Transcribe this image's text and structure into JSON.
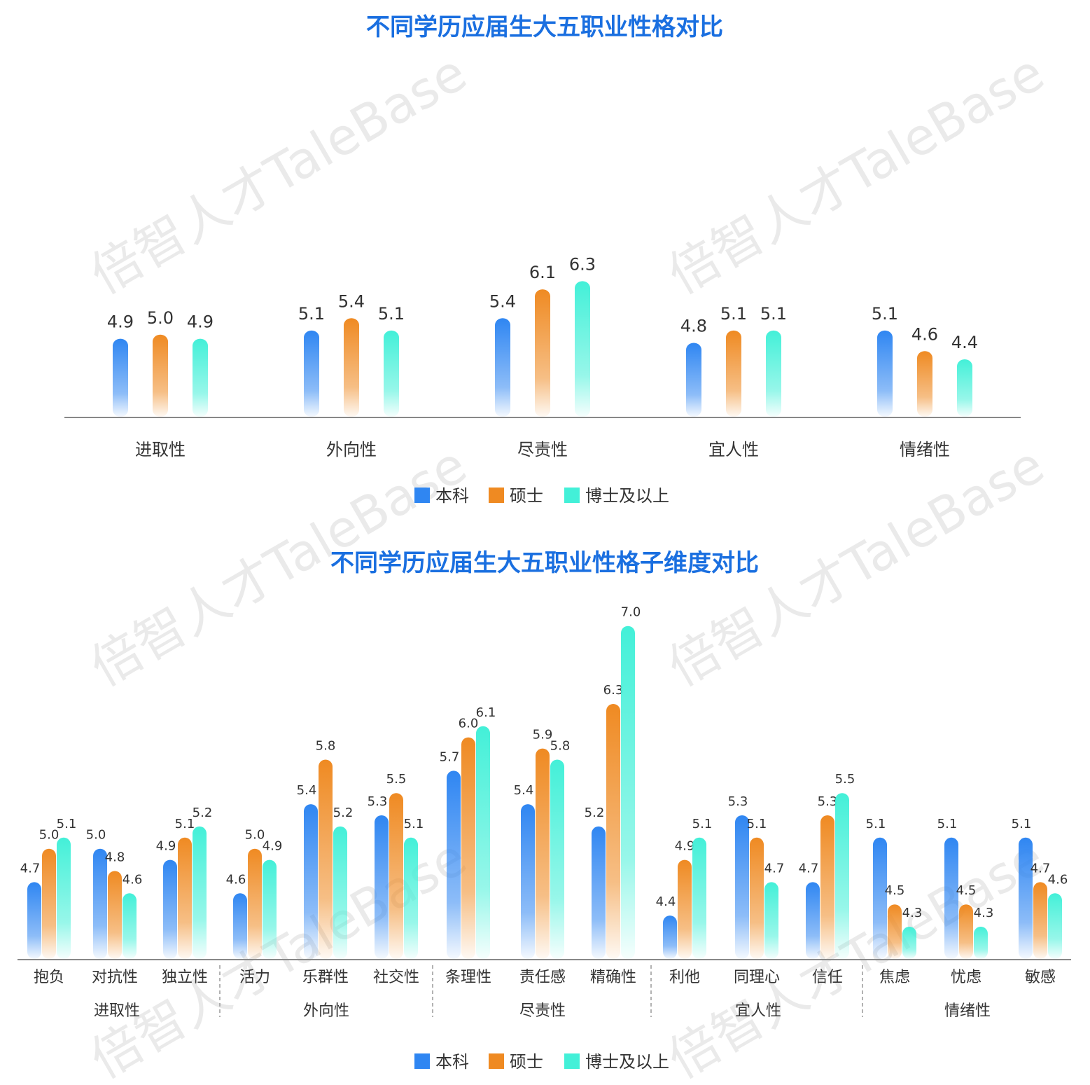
{
  "colors": {
    "本科": "#2f86f2",
    "硕士": "#ef8a22",
    "博士及以上": "#43f0d8",
    "title": "#1a6fe0",
    "axis": "#888888"
  },
  "legend": [
    "本科",
    "硕士",
    "博士及以上"
  ],
  "watermark": "倍智人才TaleBase",
  "chart_data": [
    {
      "type": "bar",
      "title": "不同学历应届生大五职业性格对比",
      "categories": [
        "进取性",
        "外向性",
        "尽责性",
        "宜人性",
        "情绪性"
      ],
      "series": [
        {
          "name": "本科",
          "values": [
            4.9,
            5.1,
            5.4,
            4.8,
            5.1
          ]
        },
        {
          "name": "硕士",
          "values": [
            5.0,
            5.4,
            6.1,
            5.1,
            4.6
          ]
        },
        {
          "name": "博士及以上",
          "values": [
            4.9,
            5.1,
            6.3,
            5.1,
            4.4
          ]
        }
      ],
      "value_labels": [
        [
          "4.9",
          "5.1",
          "5.4",
          "4.8",
          "5.1"
        ],
        [
          "5.0",
          "5.4",
          "6.1",
          "5.1",
          "4.6"
        ],
        [
          "4.9",
          "5.1",
          "6.3",
          "5.1",
          "4.4"
        ]
      ],
      "grid": false,
      "legend_position": "bottom"
    },
    {
      "type": "bar",
      "title": "不同学历应届生大五职业性格子维度对比",
      "categories": [
        "抱负",
        "对抗性",
        "独立性",
        "活力",
        "乐群性",
        "社交性",
        "条理性",
        "责任感",
        "精确性",
        "利他",
        "同理心",
        "信任",
        "焦虑",
        "忧虑",
        "敏感"
      ],
      "groups": [
        {
          "name": "进取性",
          "members": [
            "抱负",
            "对抗性",
            "独立性"
          ]
        },
        {
          "name": "外向性",
          "members": [
            "活力",
            "乐群性",
            "社交性"
          ]
        },
        {
          "name": "尽责性",
          "members": [
            "条理性",
            "责任感",
            "精确性"
          ]
        },
        {
          "name": "宜人性",
          "members": [
            "利他",
            "同理心",
            "信任"
          ]
        },
        {
          "name": "情绪性",
          "members": [
            "焦虑",
            "忧虑",
            "敏感"
          ]
        }
      ],
      "series": [
        {
          "name": "本科",
          "values": [
            4.7,
            5.0,
            4.9,
            4.6,
            5.4,
            5.3,
            5.7,
            5.4,
            5.2,
            4.4,
            5.3,
            4.7,
            5.1,
            5.1,
            5.1
          ]
        },
        {
          "name": "硕士",
          "values": [
            5.0,
            4.8,
            5.1,
            5.0,
            5.8,
            5.5,
            6.0,
            5.9,
            6.3,
            4.9,
            5.1,
            5.3,
            4.5,
            4.5,
            4.7
          ]
        },
        {
          "name": "博士及以上",
          "values": [
            5.1,
            4.6,
            5.2,
            4.9,
            5.2,
            5.1,
            6.1,
            5.8,
            7.0,
            5.1,
            4.7,
            5.5,
            4.3,
            4.3,
            4.6
          ]
        }
      ],
      "value_labels": [
        [
          "4.7",
          "5.0",
          "4.9",
          "4.6",
          "5.4",
          "5.3",
          "5.7",
          "5.4",
          "5.2",
          "4.4",
          "5.3",
          "4.7",
          "5.1",
          "5.1",
          "5.1"
        ],
        [
          "5.0",
          "4.8",
          "5.1",
          "5.0",
          "5.8",
          "5.5",
          "6.0",
          "5.9",
          "6.3",
          "4.9",
          "5.1",
          "5.3",
          "4.5",
          "4.5",
          "4.7"
        ],
        [
          "5.1",
          "4.6",
          "5.2",
          "4.9",
          "5.2",
          "5.1",
          "6.1",
          "5.8",
          "7.0",
          "5.1",
          "4.7",
          "5.5",
          "4.3",
          "4.3",
          "4.6"
        ]
      ],
      "grid": false,
      "legend_position": "bottom"
    }
  ]
}
